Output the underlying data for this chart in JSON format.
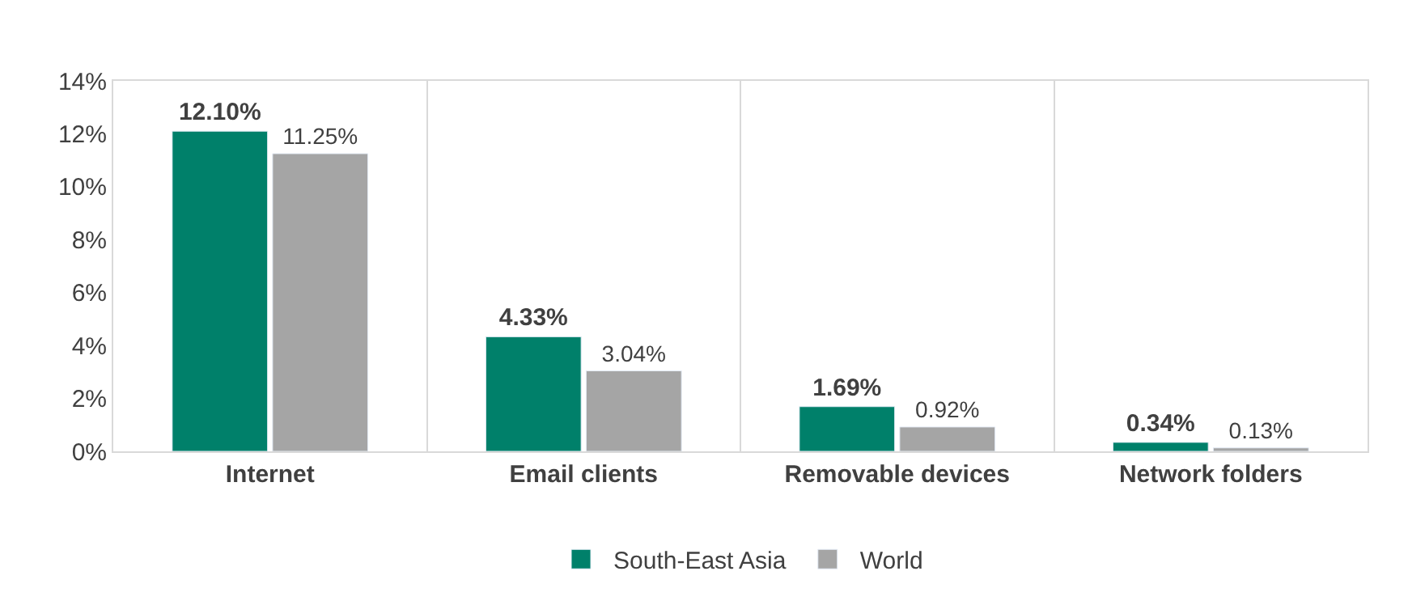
{
  "chart_data": {
    "type": "bar",
    "categories": [
      "Internet",
      "Email clients",
      "Removable devices",
      "Network folders"
    ],
    "series": [
      {
        "name": "South-East Asia",
        "color": "#00806a",
        "values": [
          12.1,
          4.33,
          1.69,
          0.34
        ],
        "value_labels": [
          "12.10%",
          "4.33%",
          "1.69%",
          "0.34%"
        ]
      },
      {
        "name": "World",
        "color": "#a5a5a5",
        "values": [
          11.25,
          3.04,
          0.92,
          0.13
        ],
        "value_labels": [
          "11.25%",
          "3.04%",
          "0.92%",
          "0.13%"
        ]
      }
    ],
    "ylim": [
      0,
      14
    ],
    "yticks": [
      {
        "value": 0,
        "label": "0%"
      },
      {
        "value": 2,
        "label": "2%"
      },
      {
        "value": 4,
        "label": "4%"
      },
      {
        "value": 6,
        "label": "6%"
      },
      {
        "value": 8,
        "label": "8%"
      },
      {
        "value": 10,
        "label": "10%"
      },
      {
        "value": 12,
        "label": "12%"
      },
      {
        "value": 14,
        "label": "14%"
      }
    ],
    "grid": "x",
    "legend": "bottom"
  }
}
